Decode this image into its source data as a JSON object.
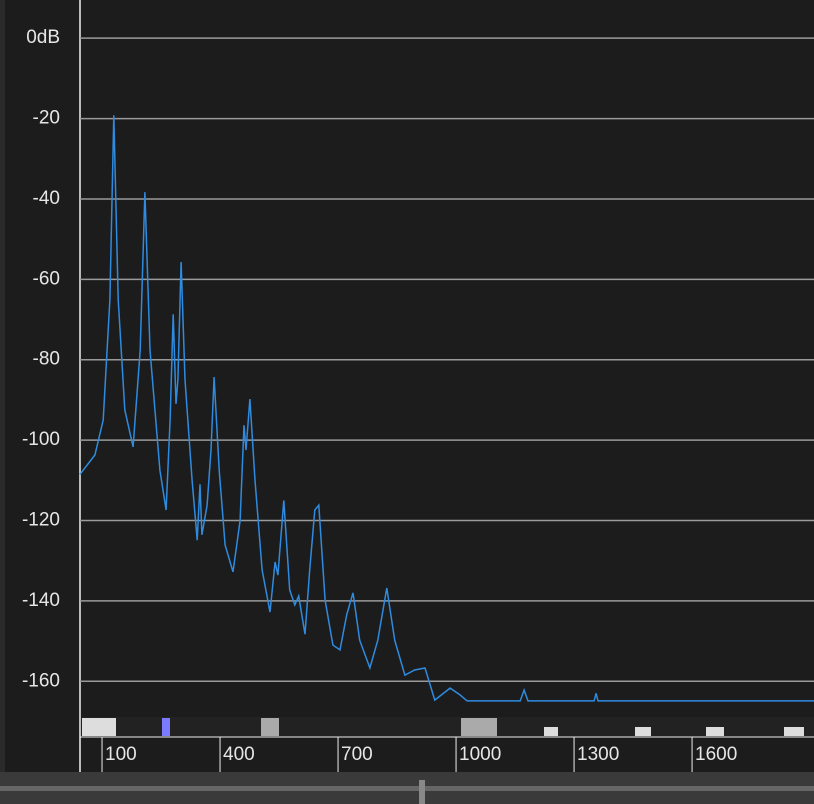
{
  "chart_data": {
    "type": "line",
    "x": [
      44,
      82,
      103,
      120,
      130,
      141,
      158,
      179,
      197,
      209,
      222,
      247,
      263,
      273,
      281,
      288,
      293,
      301,
      311,
      329,
      342,
      349,
      354,
      367,
      377,
      385,
      398,
      413,
      433,
      451,
      461,
      466,
      476,
      489,
      507,
      527,
      540,
      547,
      562,
      577,
      590,
      600,
      616,
      628,
      641,
      651,
      667,
      687,
      705,
      722,
      738,
      755,
      781,
      801,
      824,
      844,
      870,
      895,
      921,
      946,
      985,
      1010,
      1028,
      1112,
      1163,
      1173,
      1183,
      1351,
      1356,
      1361,
      1910
    ],
    "series": [
      {
        "color": "#2f8be0",
        "values": [
          -108.5,
          -103.7,
          -95,
          -65,
          -19.2,
          -65,
          -92.5,
          -101.7,
          -77.6,
          -38.3,
          -77.6,
          -107.5,
          -117.4,
          -95,
          -68.7,
          -91,
          -85,
          -55.7,
          -85,
          -110,
          -124.9,
          -111,
          -123.6,
          -116.2,
          -102.5,
          -84.3,
          -107.5,
          -126.1,
          -132.8,
          -120,
          -96.3,
          -102.5,
          -89.8,
          -110,
          -132.3,
          -142.8,
          -130.3,
          -133.6,
          -115,
          -137.3,
          -141,
          -138.8,
          -148.3,
          -132.3,
          -117.4,
          -116.2,
          -139.8,
          -151,
          -152.2,
          -143.5,
          -138,
          -149.8,
          -156.7,
          -149.8,
          -136.8,
          -149.8,
          -158.5,
          -157.2,
          -156.7,
          -164.7,
          -161.7,
          -163.4,
          -164.9,
          -164.9,
          -164.9,
          -162.2,
          -164.9,
          -164.9,
          -163,
          -164.9,
          -164.9
        ]
      }
    ],
    "xlim": [
      44,
      1910
    ],
    "xticks": [
      100,
      400,
      700,
      1000,
      1300,
      1600
    ],
    "ylim": [
      -168.4,
      9.5
    ],
    "yticks": [
      {
        "value": 0,
        "label": "0dB"
      },
      -20,
      -40,
      -60,
      -80,
      -100,
      -120,
      -140,
      -160
    ],
    "grid": true
  }
}
